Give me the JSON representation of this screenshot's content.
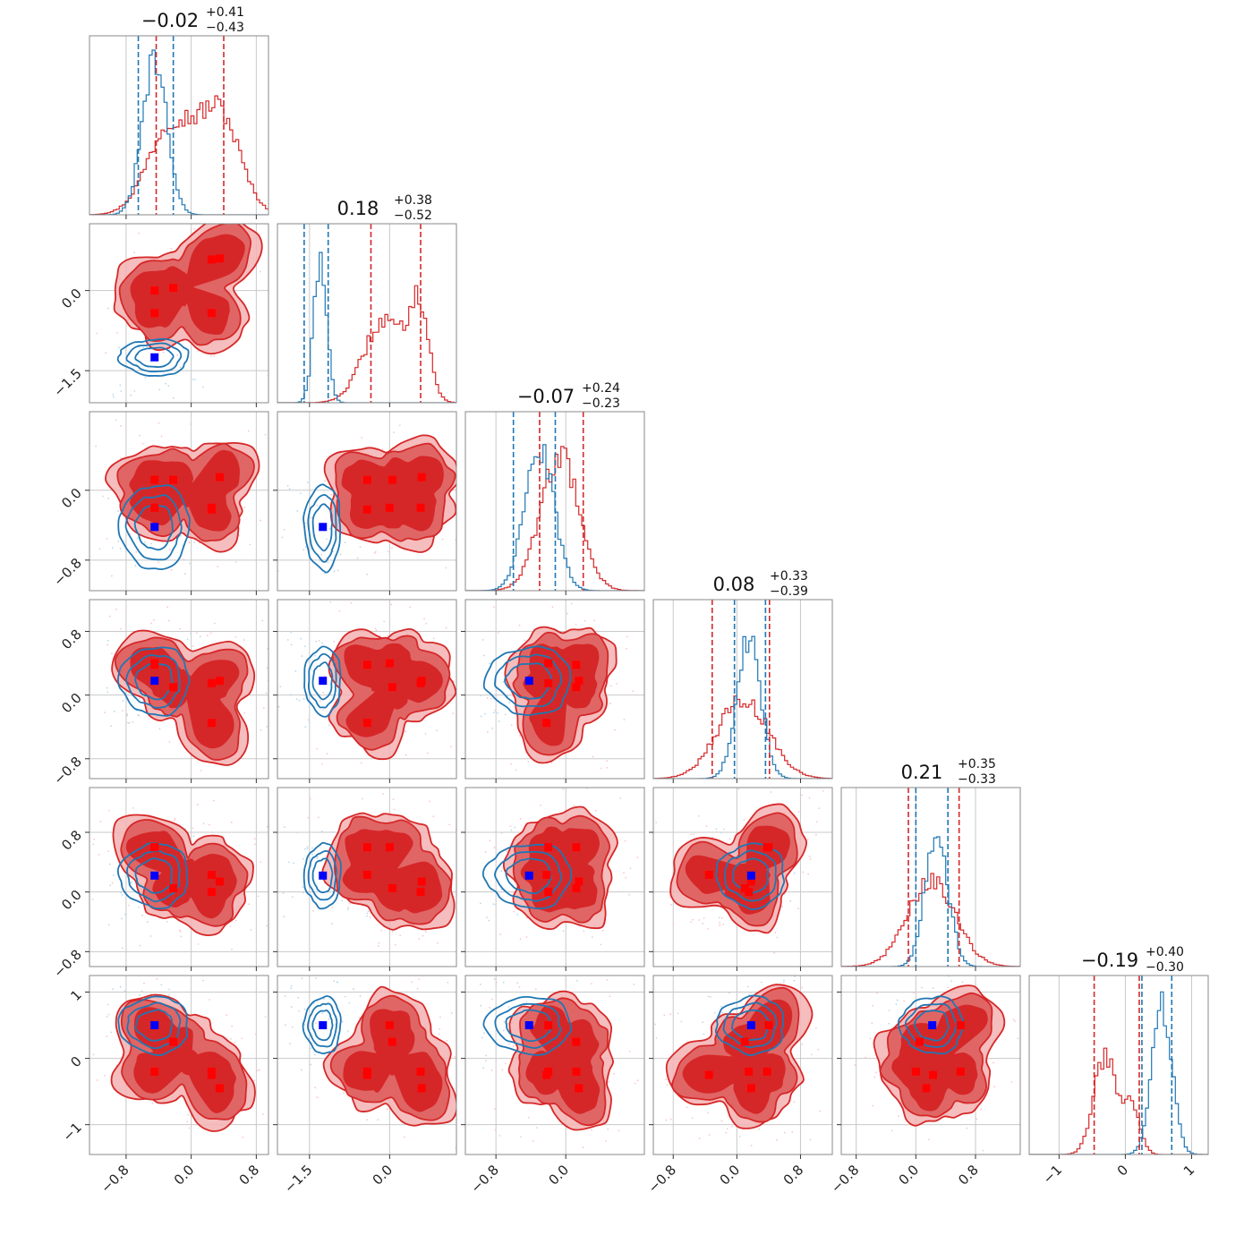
{
  "colors": {
    "red": "#d62728",
    "red_mid": "#e06666",
    "red_light": "#f3b2b2",
    "blue": "#1f77b4",
    "marker_red": "#ff0000",
    "marker_blue": "#0000ff",
    "grid": "#c8c8c8",
    "frame": "#888888"
  },
  "chart_data": {
    "type": "corner",
    "n_params": 6,
    "grid": true,
    "params": [
      {
        "range": [
          -1.25,
          0.95
        ],
        "ticks": [
          -0.8,
          0.0,
          0.8
        ],
        "tick_labels": [
          "−0.8",
          "0.0",
          "0.8"
        ],
        "title": {
          "median": "−0.02",
          "upper": "+0.41",
          "lower": "−0.43"
        },
        "hist_blue": {
          "center": -0.45,
          "sigma": 0.15,
          "peak": 0.93
        },
        "hist_red": {
          "modes": [
            [
              -0.25,
              0.28,
              0.55
            ],
            [
              0.35,
              0.25,
              0.6
            ]
          ]
        },
        "qlines_blue": [
          -0.65,
          -0.22
        ],
        "qlines_red": [
          -0.43,
          0.4
        ]
      },
      {
        "range": [
          -2.1,
          1.25
        ],
        "ticks": [
          -1.5,
          0.0
        ],
        "tick_labels": [
          "−1.5",
          "0.0"
        ],
        "title": {
          "median": "0.18",
          "upper": "+0.38",
          "lower": "−0.52"
        },
        "hist_blue": {
          "center": -1.3,
          "sigma": 0.12,
          "peak": 0.88
        },
        "hist_red": {
          "modes": [
            [
              -0.1,
              0.38,
              0.5
            ],
            [
              0.55,
              0.18,
              0.55
            ]
          ]
        },
        "qlines_blue": [
          -1.6,
          -1.15
        ],
        "qlines_red": [
          -0.35,
          0.58
        ]
      },
      {
        "range": [
          -1.15,
          0.9
        ],
        "ticks": [
          -0.8,
          0.0
        ],
        "tick_labels": [
          "−0.8",
          "0.0"
        ],
        "title": {
          "median": "−0.07",
          "upper": "+0.24",
          "lower": "−0.23"
        },
        "hist_blue": {
          "center": -0.3,
          "sigma": 0.17,
          "peak": 0.85
        },
        "hist_red": {
          "modes": [
            [
              -0.07,
              0.22,
              0.82
            ]
          ]
        },
        "qlines_blue": [
          -0.6,
          -0.12
        ],
        "qlines_red": [
          -0.3,
          0.2
        ]
      },
      {
        "range": [
          -1.05,
          1.2
        ],
        "ticks": [
          -0.8,
          0.0,
          0.8
        ],
        "tick_labels": [
          "−0.8",
          "0.0",
          "0.8"
        ],
        "title": {
          "median": "0.08",
          "upper": "+0.33",
          "lower": "−0.39"
        },
        "hist_blue": {
          "center": 0.15,
          "sigma": 0.15,
          "peak": 0.85
        },
        "hist_red": {
          "modes": [
            [
              0.08,
              0.32,
              0.48
            ]
          ]
        },
        "qlines_blue": [
          -0.03,
          0.36
        ],
        "qlines_red": [
          -0.31,
          0.41
        ]
      },
      {
        "range": [
          -1.0,
          1.4
        ],
        "ticks": [
          -0.8,
          0.0,
          0.8
        ],
        "tick_labels": [
          "−0.8",
          "0.0",
          "0.8"
        ],
        "title": {
          "median": "0.21",
          "upper": "+0.35",
          "lower": "−0.33"
        },
        "hist_blue": {
          "center": 0.28,
          "sigma": 0.15,
          "peak": 0.85
        },
        "hist_red": {
          "modes": [
            [
              0.21,
              0.32,
              0.52
            ]
          ]
        },
        "qlines_blue": [
          0.0,
          0.43
        ],
        "qlines_red": [
          -0.1,
          0.58
        ]
      },
      {
        "range": [
          -1.45,
          1.25
        ],
        "ticks": [
          -1,
          0,
          1
        ],
        "tick_labels": [
          "−1",
          "0",
          "1"
        ],
        "title": {
          "median": "−0.19",
          "upper": "+0.40",
          "lower": "−0.30"
        },
        "hist_blue": {
          "center": 0.55,
          "sigma": 0.15,
          "peak": 0.9
        },
        "hist_red": {
          "modes": [
            [
              -0.3,
              0.17,
              0.6
            ],
            [
              0.1,
              0.12,
              0.3
            ]
          ]
        },
        "qlines_blue": [
          0.25,
          0.7
        ],
        "qlines_red": [
          -0.47,
          0.21
        ]
      }
    ],
    "markers_blue": [
      -0.45,
      -1.25,
      -0.42,
      0.18,
      0.22,
      0.5
    ],
    "markers_red": [
      [
        -0.45,
        0.0,
        -0.2,
        0.4,
        0.6,
        0.5
      ],
      [
        -0.22,
        0.05,
        0.12,
        0.1,
        0.05,
        0.25
      ],
      [
        0.25,
        -0.42,
        -0.22,
        -0.35,
        0.23,
        -0.25
      ],
      [
        0.35,
        0.6,
        0.15,
        0.18,
        0.14,
        -0.45
      ],
      [
        -0.45,
        -0.42,
        0.12,
        0.38,
        0.6,
        -0.2
      ],
      [
        0.25,
        0.58,
        -0.2,
        0.15,
        0.0,
        -0.2
      ]
    ]
  }
}
